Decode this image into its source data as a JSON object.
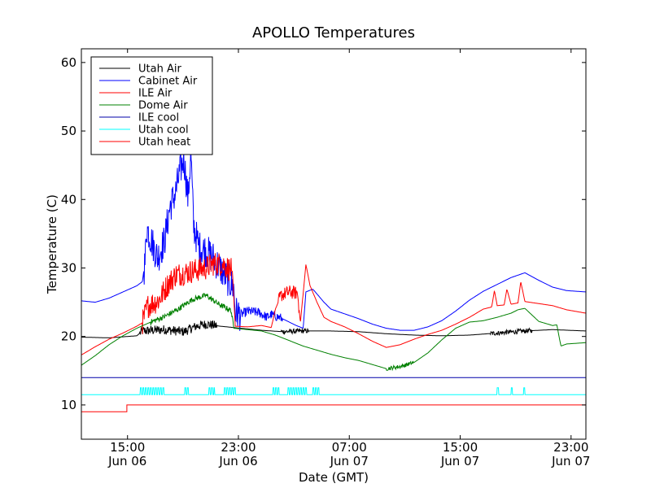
{
  "chart_data": {
    "type": "line",
    "title": "APOLLO Temperatures",
    "xlabel": "Date (GMT)",
    "ylabel": "Temperature (C)",
    "x_unit": "hours since Jun 06 11:40 GMT",
    "xlim": [
      0,
      36.4
    ],
    "ylim": [
      5,
      62
    ],
    "y_ticks": [
      10,
      20,
      30,
      40,
      50,
      60
    ],
    "x_ticks": [
      {
        "x": 3.33,
        "time": "15:00",
        "date": "Jun 06"
      },
      {
        "x": 11.33,
        "time": "23:00",
        "date": "Jun 06"
      },
      {
        "x": 19.33,
        "time": "07:00",
        "date": "Jun 07"
      },
      {
        "x": 27.33,
        "time": "15:00",
        "date": "Jun 07"
      },
      {
        "x": 35.33,
        "time": "23:00",
        "date": "Jun 07"
      }
    ],
    "legend": {
      "position": "top-left"
    },
    "series": [
      {
        "name": "Utah Air",
        "color": "#000000",
        "x": [
          0,
          2,
          4,
          4.4,
          6,
          7.4,
          8.3,
          9,
          10,
          11.5,
          13,
          14.5,
          16,
          18,
          20,
          22,
          24,
          26,
          28,
          30,
          32,
          34,
          36.4
        ],
        "y": [
          19.9,
          19.8,
          20.1,
          20.8,
          21.0,
          20.7,
          21.5,
          21.8,
          21.5,
          21.2,
          20.9,
          20.7,
          20.8,
          20.8,
          20.7,
          20.4,
          20.2,
          20.1,
          20.2,
          20.5,
          20.8,
          21.0,
          20.8
        ],
        "noise": [
          [
            4.2,
            9.8,
            0.7
          ],
          [
            14.4,
            16.4,
            0.35
          ],
          [
            29.5,
            32.5,
            0.35
          ]
        ]
      },
      {
        "name": "Cabinet Air",
        "color": "#0000ff",
        "x": [
          0,
          1,
          2,
          3,
          4,
          4.4,
          4.6,
          4.7,
          5.5,
          6,
          6.4,
          6.8,
          7.1,
          7.4,
          7.7,
          7.9,
          8.1,
          8.5,
          9,
          9.5,
          10,
          10.5,
          11,
          11.1,
          11.5,
          12,
          12.8,
          13.4,
          13.7,
          14.5,
          15,
          15.5,
          16,
          16.2,
          16.7,
          17,
          17.5,
          18,
          19,
          20,
          21,
          22,
          23,
          24,
          25,
          26,
          27,
          28,
          29,
          30,
          31,
          32,
          33,
          34,
          35,
          36.4
        ],
        "y": [
          25.2,
          25,
          25.6,
          26.5,
          27.4,
          28,
          31,
          36,
          31.5,
          34,
          39,
          41,
          44,
          46,
          40,
          47,
          36,
          33,
          32.5,
          31.5,
          30,
          28.5,
          27,
          23.5,
          23.2,
          23.7,
          23.5,
          22.8,
          23.2,
          22.6,
          22.1,
          21.6,
          21.2,
          26.5,
          26.9,
          26.2,
          25,
          24,
          23.3,
          22.6,
          21.8,
          21.2,
          20.9,
          20.9,
          21.4,
          22.3,
          23.7,
          25.3,
          26.6,
          27.6,
          28.6,
          29.3,
          28.2,
          27.2,
          26.7,
          26.5
        ],
        "noise": [
          [
            4.5,
            11.5,
            2.5
          ],
          [
            11.5,
            14.5,
            0.7
          ]
        ]
      },
      {
        "name": "ILE Air",
        "color": "#ff0000",
        "x": [
          0,
          1,
          2,
          3,
          4,
          4.4,
          4.8,
          5.6,
          6.2,
          6.8,
          7.5,
          8.5,
          9,
          9.5,
          10.2,
          10.9,
          11.1,
          12,
          13,
          13.7,
          14,
          14.4,
          15,
          15.6,
          15.8,
          16.2,
          16.5,
          17,
          17.5,
          18,
          19,
          20,
          21,
          22,
          23,
          24,
          25,
          26,
          27,
          28,
          29,
          29.6,
          29.8,
          30,
          30.5,
          30.7,
          31,
          31.5,
          31.7,
          32,
          33,
          34,
          35,
          36.4
        ],
        "y": [
          17.3,
          18.5,
          19.6,
          20.5,
          21.5,
          22,
          24.5,
          25.3,
          27.5,
          29,
          29.3,
          29.8,
          30,
          30.6,
          30.6,
          29.5,
          21.5,
          21.4,
          21.6,
          21.3,
          24,
          26,
          26.5,
          26.3,
          22,
          30.5,
          27.4,
          25,
          22.8,
          22.2,
          21.4,
          20.4,
          19.3,
          18.4,
          18.8,
          19.6,
          20.3,
          20.9,
          21.8,
          22.8,
          24.0,
          24.3,
          26.7,
          24.5,
          24.6,
          26.9,
          24.7,
          24.9,
          28,
          25.1,
          24.8,
          24.5,
          23.9,
          23.4
        ],
        "noise": [
          [
            4.4,
            10.8,
            1.8
          ],
          [
            14.2,
            15.7,
            1.0
          ]
        ]
      },
      {
        "name": "Dome Air",
        "color": "#008000",
        "x": [
          0,
          1,
          2,
          3,
          4,
          5,
          6,
          7,
          8,
          9,
          10,
          10.8,
          11,
          11.5,
          12,
          13,
          14,
          15,
          16,
          17,
          18,
          19,
          20,
          21,
          22,
          23,
          24,
          25,
          26,
          27,
          28,
          29,
          30,
          31,
          31.5,
          32,
          33,
          34,
          34.3,
          34.6,
          35,
          36.4
        ],
        "y": [
          15.8,
          17.2,
          18.8,
          20.1,
          21.2,
          22.1,
          22.9,
          24.0,
          25.4,
          26.0,
          24.6,
          23.8,
          21.2,
          21.1,
          21.0,
          20.8,
          20.2,
          19.4,
          18.6,
          18.0,
          17.4,
          16.9,
          16.5,
          15.9,
          15.3,
          15.6,
          16.2,
          17.6,
          19.5,
          21.2,
          22.1,
          22.3,
          22.8,
          23.4,
          23.9,
          24.1,
          22.2,
          21.6,
          21.7,
          18.6,
          18.9,
          19.1
        ],
        "noise": [
          [
            5,
            11,
            0.4
          ],
          [
            22,
            24,
            0.3
          ]
        ]
      },
      {
        "name": "ILE cool",
        "color": "#0000aa",
        "x": [
          0,
          36.4
        ],
        "y": [
          14,
          14
        ]
      },
      {
        "name": "Utah cool",
        "color": "#00ffff",
        "x": [
          0,
          36.4
        ],
        "y": [
          11.5,
          11.5
        ],
        "spikes": {
          "top": 12.5,
          "ranges": [
            [
              4.25,
              6.0
            ],
            [
              7.45,
              7.8
            ],
            [
              9.2,
              9.6
            ],
            [
              10.3,
              11.2
            ],
            [
              13.8,
              14.3
            ],
            [
              14.9,
              16.3
            ],
            [
              16.7,
              17.2
            ],
            [
              30.0,
              30.1
            ],
            [
              31.0,
              31.1
            ],
            [
              31.9,
              32.0
            ]
          ]
        }
      },
      {
        "name": "Utah heat",
        "color": "#ff0000",
        "x": [
          0,
          3.28,
          3.28,
          36.4
        ],
        "y": [
          9,
          9,
          10,
          10
        ]
      }
    ]
  }
}
